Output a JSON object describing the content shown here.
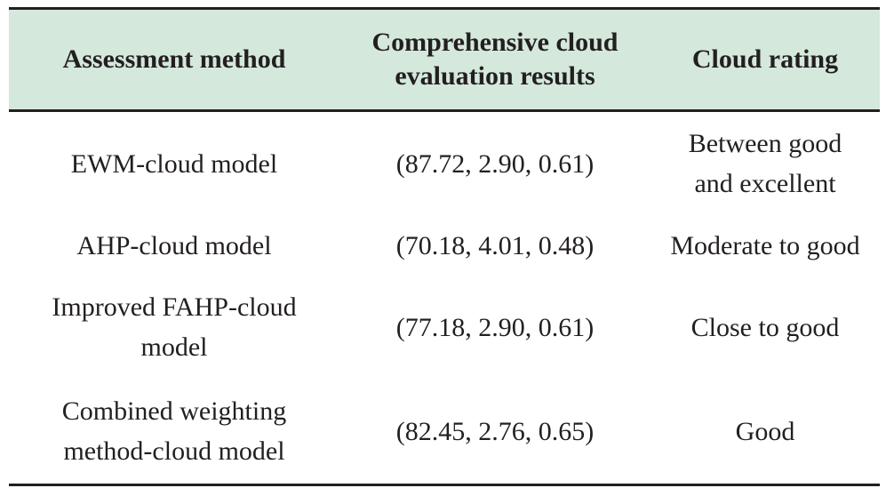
{
  "table": {
    "headers": [
      {
        "lines": [
          "Assessment method"
        ]
      },
      {
        "lines": [
          "Comprehensive cloud",
          "evaluation results"
        ]
      },
      {
        "lines": [
          "Cloud rating"
        ]
      }
    ],
    "rows": [
      {
        "method": [
          "EWM-cloud model"
        ],
        "result": "(87.72, 2.90, 0.61)",
        "rating": [
          "Between good",
          "and excellent"
        ]
      },
      {
        "method": [
          "AHP-cloud model"
        ],
        "result": "(70.18, 4.01, 0.48)",
        "rating": [
          "Moderate to good"
        ]
      },
      {
        "method": [
          "Improved FAHP-cloud",
          "model"
        ],
        "result": "(77.18, 2.90, 0.61)",
        "rating": [
          "Close to good"
        ]
      },
      {
        "method": [
          "Combined weighting",
          "method-cloud model"
        ],
        "result": "(82.45, 2.76, 0.65)",
        "rating": [
          "Good"
        ]
      }
    ],
    "colors": {
      "header_background": "#d4e8dc",
      "rule": "#231f20",
      "text": "#231f20"
    }
  }
}
